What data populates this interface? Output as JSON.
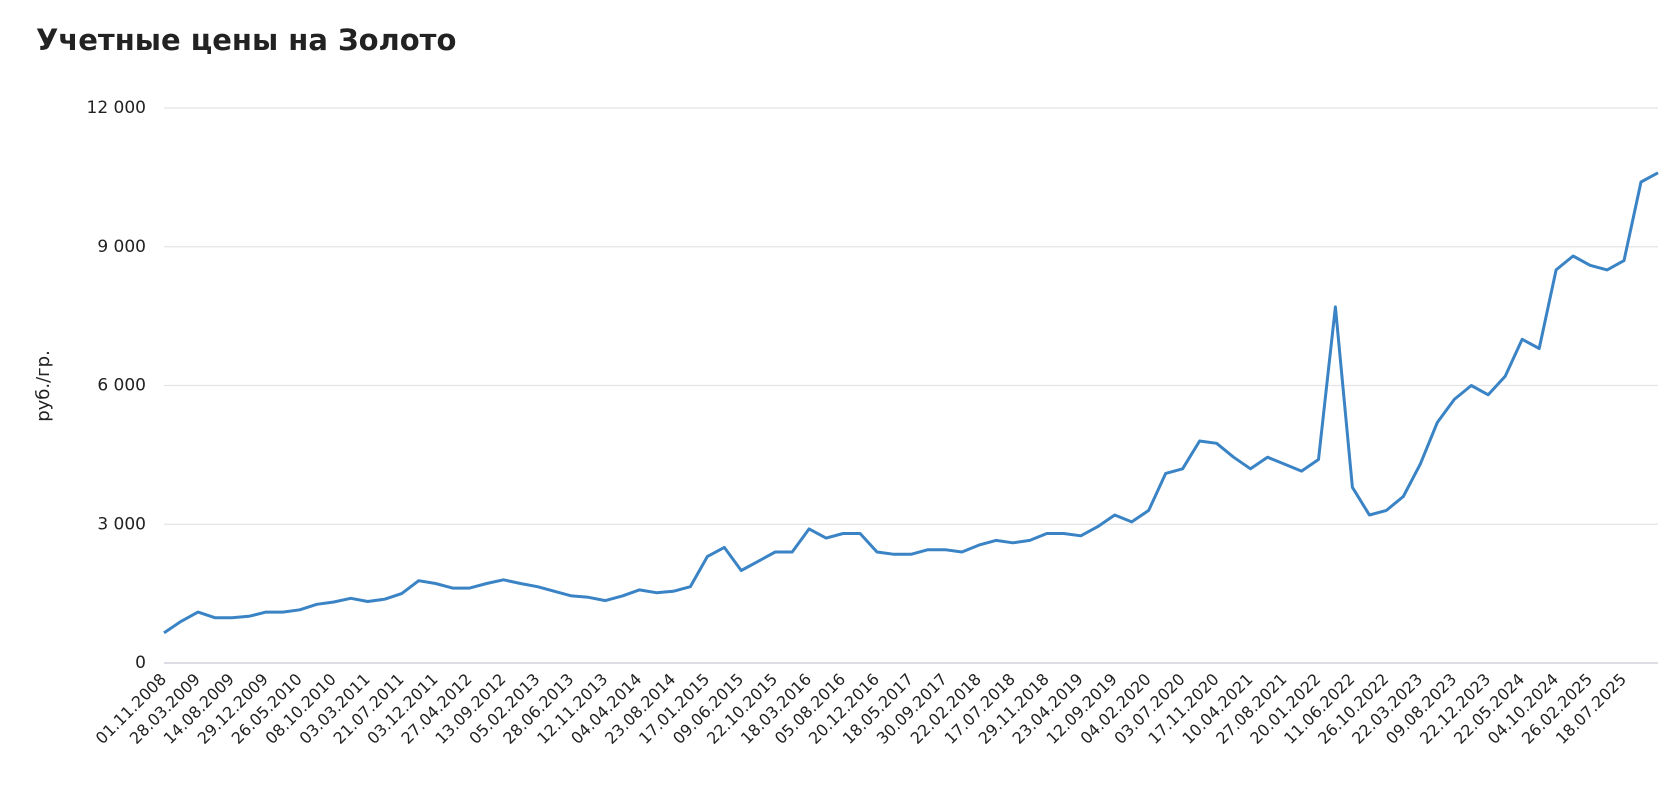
{
  "chart_data": {
    "type": "line",
    "title": "Учетные цены на Золото",
    "y_label": "руб./гр.",
    "categories": [
      "01.11.2008",
      null,
      "28.03.2009",
      null,
      "14.08.2009",
      null,
      "29.12.2009",
      null,
      "26.05.2010",
      null,
      "08.10.2010",
      null,
      "03.03.2011",
      null,
      "21.07.2011",
      null,
      "03.12.2011",
      null,
      "27.04.2012",
      null,
      "13.09.2012",
      null,
      "05.02.2013",
      null,
      "28.06.2013",
      null,
      "12.11.2013",
      null,
      "04.04.2014",
      null,
      "23.08.2014",
      null,
      "17.01.2015",
      null,
      "09.06.2015",
      null,
      "22.10.2015",
      null,
      "18.03.2016",
      null,
      "05.08.2016",
      null,
      "20.12.2016",
      null,
      "18.05.2017",
      null,
      "30.09.2017",
      null,
      "22.02.2018",
      null,
      "17.07.2018",
      null,
      "29.11.2018",
      null,
      "23.04.2019",
      null,
      "12.09.2019",
      null,
      "04.02.2020",
      null,
      "03.07.2020",
      null,
      "17.11.2020",
      null,
      "10.04.2021",
      null,
      "27.08.2021",
      null,
      "20.01.2022",
      null,
      "11.06.2022",
      null,
      "26.10.2022",
      null,
      "22.03.2023",
      null,
      "09.08.2023",
      null,
      "22.12.2023",
      null,
      "22.05.2024",
      null,
      "04.10.2024",
      null,
      "26.02.2025",
      null,
      "18.07.2025",
      null,
      null
    ],
    "values": [
      650,
      900,
      1100,
      980,
      980,
      1010,
      1100,
      1100,
      1150,
      1270,
      1320,
      1400,
      1330,
      1380,
      1500,
      1780,
      1720,
      1620,
      1620,
      1720,
      1800,
      1720,
      1650,
      1550,
      1450,
      1420,
      1350,
      1450,
      1580,
      1520,
      1550,
      1650,
      2300,
      2500,
      2000,
      2200,
      2400,
      2400,
      2900,
      2700,
      2800,
      2800,
      2400,
      2350,
      2350,
      2450,
      2450,
      2400,
      2550,
      2650,
      2600,
      2650,
      2800,
      2800,
      2750,
      2950,
      3200,
      3050,
      3300,
      4100,
      4200,
      4800,
      4750,
      4450,
      4200,
      4450,
      4300,
      4150,
      4400,
      7700,
      3800,
      3200,
      3300,
      3600,
      4300,
      5200,
      5700,
      6000,
      5800,
      6200,
      7000,
      6800,
      8500,
      8800,
      8600,
      8500,
      8700,
      10400,
      10600
    ],
    "color": "#3a83c5",
    "ylim": [
      0,
      12000
    ],
    "yticks": [
      0,
      {
        "value": 3000,
        "label": "3 000"
      },
      {
        "value": 6000,
        "label": "6 000"
      },
      {
        "value": 9000,
        "label": "9 000"
      },
      {
        "value": 12000,
        "label": "12 000"
      }
    ],
    "grid": true
  }
}
